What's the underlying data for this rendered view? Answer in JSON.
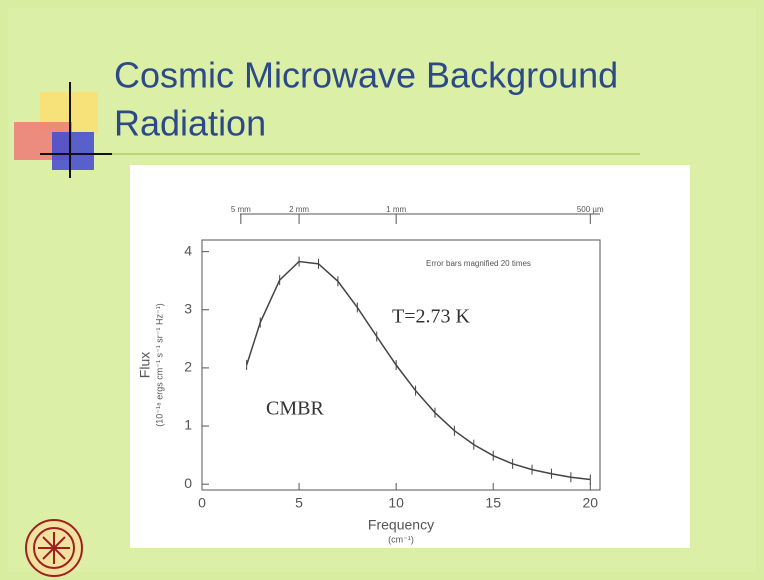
{
  "slide": {
    "title": [
      "Cosmic Microwave Background",
      "Radiation"
    ]
  },
  "chart_data": {
    "type": "line",
    "x_label": "Frequency",
    "x_unit": "(cm⁻¹)",
    "y_label": "Flux",
    "y_unit": "(10⁻¹⁸ ergs cm⁻¹ s⁻¹ sr⁻¹ Hz⁻¹)",
    "annotations": [
      "Error bars magnified 20 times",
      "T=2.73 K",
      "CMBR"
    ],
    "x": [
      2.3,
      3,
      4,
      5,
      6,
      7,
      8,
      9,
      10,
      11,
      12,
      13,
      14,
      15,
      16,
      17,
      18,
      19,
      20
    ],
    "series": [
      {
        "name": "CMBR",
        "color": "#444444",
        "values": [
          2.05,
          2.78,
          3.51,
          3.83,
          3.79,
          3.49,
          3.04,
          2.54,
          2.05,
          1.61,
          1.23,
          0.92,
          0.68,
          0.49,
          0.35,
          0.25,
          0.18,
          0.12,
          0.08
        ]
      }
    ],
    "xlim": [
      0,
      20.5
    ],
    "ylim": [
      -0.1,
      4.2
    ],
    "xticks": [
      0,
      5,
      10,
      15,
      20
    ],
    "yticks": [
      0,
      1,
      2,
      3,
      4
    ],
    "x2ticks": [
      {
        "value": 2,
        "label": "5 mm"
      },
      {
        "value": 5,
        "label": "2 mm"
      },
      {
        "value": 10,
        "label": "1 mm"
      },
      {
        "value": 20,
        "label": "500 µm"
      }
    ]
  }
}
